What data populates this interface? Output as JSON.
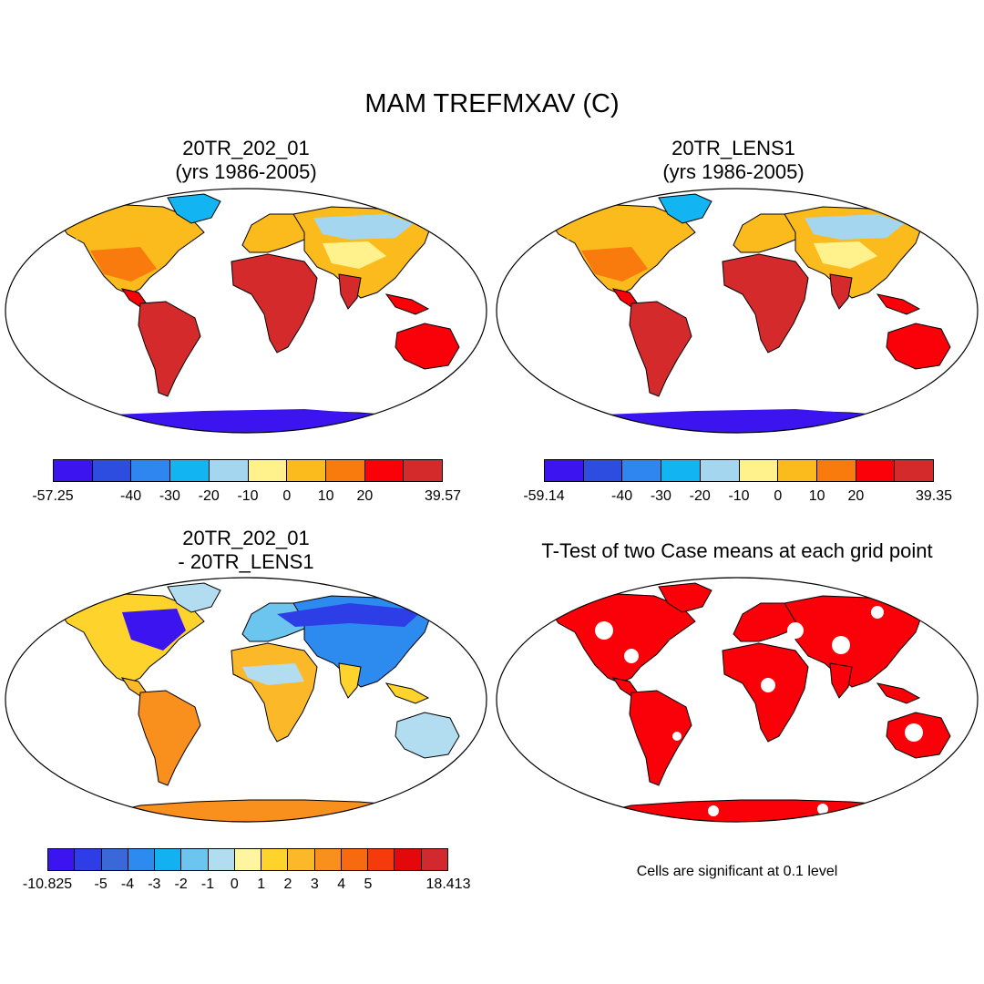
{
  "figure": {
    "title": "MAM TREFMXAV (C)",
    "panels": [
      {
        "title_line1": "20TR_202_01",
        "title_line2": "(yrs 1986-2005)",
        "colorbar": {
          "colors": [
            "#3b14f0",
            "#2d4ce0",
            "#2f86f0",
            "#12b4f2",
            "#a5d6ef",
            "#fff28c",
            "#fbbb1c",
            "#f97b0d",
            "#fa0008",
            "#d42a2c"
          ],
          "labels": [
            "-57.25",
            "-40",
            "-30",
            "-20",
            "-10",
            "0",
            "10",
            "20",
            "39.57"
          ]
        }
      },
      {
        "title_line1": "20TR_LENS1",
        "title_line2": "(yrs 1986-2005)",
        "colorbar": {
          "colors": [
            "#3b14f0",
            "#2d4ce0",
            "#2f86f0",
            "#12b4f2",
            "#a5d6ef",
            "#fff28c",
            "#fbbb1c",
            "#f97b0d",
            "#fa0008",
            "#d42a2c"
          ],
          "labels": [
            "-59.14",
            "-40",
            "-30",
            "-20",
            "-10",
            "0",
            "10",
            "20",
            "39.35"
          ]
        }
      },
      {
        "title_line1": "20TR_202_01",
        "title_line2": "- 20TR_LENS1",
        "colorbar": {
          "colors": [
            "#3b14f0",
            "#2d3ee6",
            "#3b68d8",
            "#2d8bef",
            "#14b1f2",
            "#6cc5ef",
            "#b2dcf0",
            "#fff5a0",
            "#fdd32c",
            "#fbb929",
            "#f98f1c",
            "#f86a10",
            "#f53a0b",
            "#e2080c",
            "#d2292e"
          ],
          "labels": [
            "-10.825",
            "-5",
            "-4",
            "-3",
            "-2",
            "-1",
            "0",
            "1",
            "2",
            "3",
            "4",
            "5",
            "18.413"
          ]
        }
      },
      {
        "title": "T-Test of two Case means at each grid point",
        "note": "Cells are significant at 0.1 level"
      }
    ]
  }
}
